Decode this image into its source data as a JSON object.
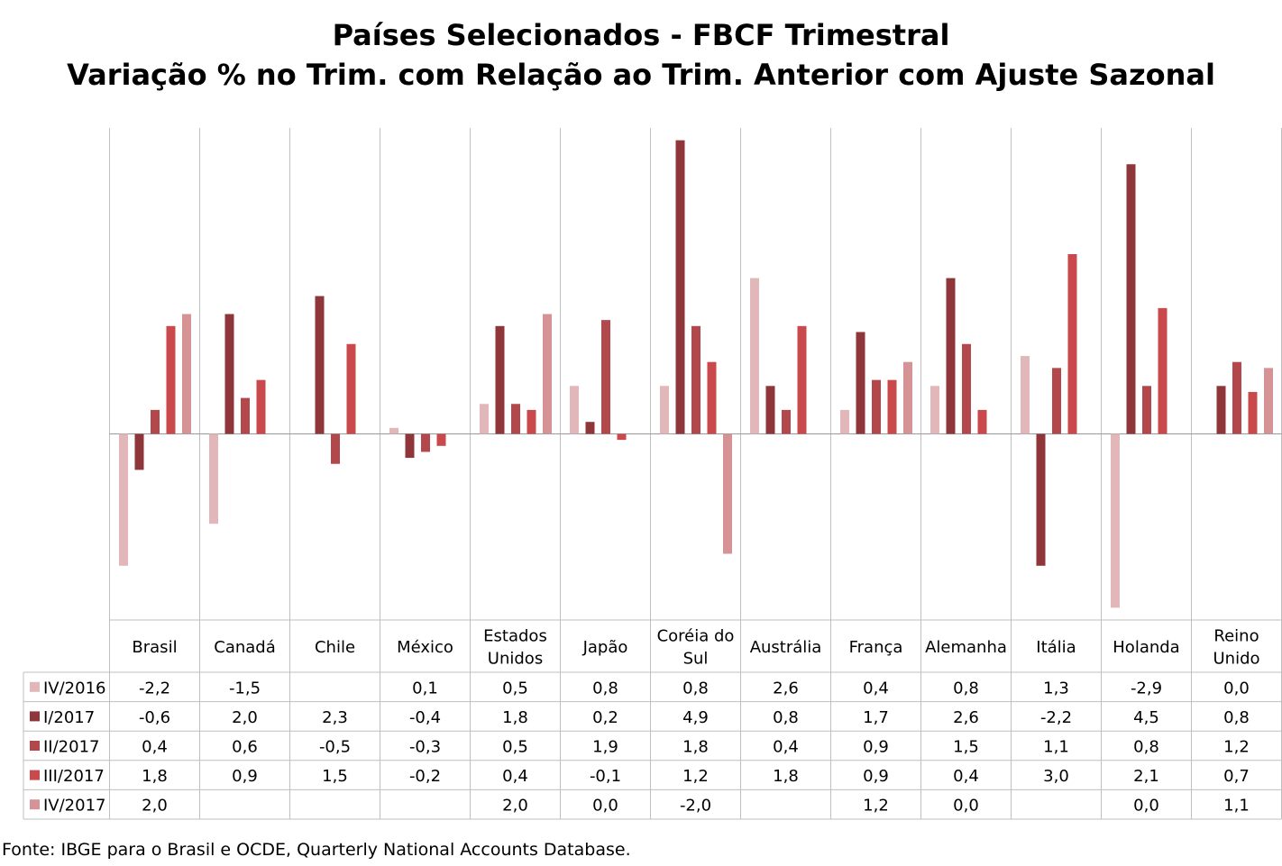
{
  "chart_data": {
    "type": "bar",
    "title": "Países Selecionados - FBCF Trimestral",
    "subtitle": "Variação % no Trim. com Relação ao Trim. Anterior com Ajuste Sazonal",
    "categories": [
      [
        "Brasil"
      ],
      [
        "Canadá"
      ],
      [
        "Chile"
      ],
      [
        "México"
      ],
      [
        "Estados",
        "Unidos"
      ],
      [
        "Japão"
      ],
      [
        "Coréia do",
        "Sul"
      ],
      [
        "Austrália"
      ],
      [
        "França"
      ],
      [
        "Alemanha"
      ],
      [
        "Itália"
      ],
      [
        "Holanda"
      ],
      [
        "Reino",
        "Unido"
      ]
    ],
    "ylim": [
      -3.1,
      5.1
    ],
    "grid": false,
    "legend": "data-table-left",
    "series": [
      {
        "name": "IV/2016",
        "color": "#e2b7b9",
        "values": [
          -2.2,
          -1.5,
          null,
          0.1,
          0.5,
          0.8,
          0.8,
          2.6,
          0.4,
          0.8,
          1.3,
          -2.9,
          0.0
        ],
        "labels": [
          "-2,2",
          "-1,5",
          "",
          "0,1",
          "0,5",
          "0,8",
          "0,8",
          "2,6",
          "0,4",
          "0,8",
          "1,3",
          "-2,9",
          "0,0"
        ]
      },
      {
        "name": "I/2017",
        "color": "#8e3639",
        "values": [
          -0.6,
          2.0,
          2.3,
          -0.4,
          1.8,
          0.2,
          4.9,
          0.8,
          1.7,
          2.6,
          -2.2,
          4.5,
          0.8
        ],
        "labels": [
          "-0,6",
          "2,0",
          "2,3",
          "-0,4",
          "1,8",
          "0,2",
          "4,9",
          "0,8",
          "1,7",
          "2,6",
          "-2,2",
          "4,5",
          "0,8"
        ]
      },
      {
        "name": "II/2017",
        "color": "#b2474c",
        "values": [
          0.4,
          0.6,
          -0.5,
          -0.3,
          0.5,
          1.9,
          1.8,
          0.4,
          0.9,
          1.5,
          1.1,
          0.8,
          1.2
        ],
        "labels": [
          "0,4",
          "0,6",
          "-0,5",
          "-0,3",
          "0,5",
          "1,9",
          "1,8",
          "0,4",
          "0,9",
          "1,5",
          "1,1",
          "0,8",
          "1,2"
        ]
      },
      {
        "name": "III/2017",
        "color": "#c9494d",
        "values": [
          1.8,
          0.9,
          1.5,
          -0.2,
          0.4,
          -0.1,
          1.2,
          1.8,
          0.9,
          0.4,
          3.0,
          2.1,
          0.7
        ],
        "labels": [
          "1,8",
          "0,9",
          "1,5",
          "-0,2",
          "0,4",
          "-0,1",
          "1,2",
          "1,8",
          "0,9",
          "0,4",
          "3,0",
          "2,1",
          "0,7"
        ]
      },
      {
        "name": "IV/2017",
        "color": "#d59396",
        "values": [
          2.0,
          null,
          null,
          null,
          2.0,
          0.0,
          -2.0,
          null,
          1.2,
          0.0,
          null,
          0.0,
          1.1
        ],
        "labels": [
          "2,0",
          "",
          "",
          "",
          "2,0",
          "0,0",
          "-2,0",
          "",
          "1,2",
          "0,0",
          "",
          "0,0",
          "1,1"
        ]
      }
    ]
  },
  "source": "Fonte: IBGE para o Brasil e OCDE, Quarterly National Accounts Database."
}
